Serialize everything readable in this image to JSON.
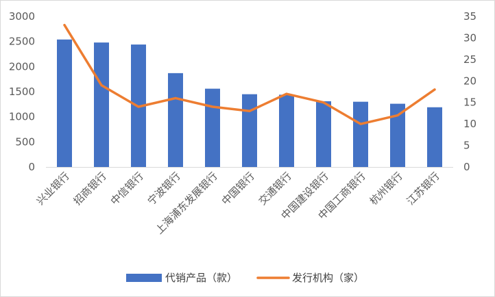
{
  "chart_data": {
    "type": "bar",
    "categories": [
      "兴业银行",
      "招商银行",
      "中信银行",
      "宁波银行",
      "上海浦东发展银行",
      "中国银行",
      "交通银行",
      "中国建设银行",
      "中国工商银行",
      "杭州银行",
      "江苏银行"
    ],
    "series": [
      {
        "name": "代销产品（款）",
        "type": "bar",
        "axis": "left",
        "color": "#4472C4",
        "values": [
          2540,
          2480,
          2440,
          1870,
          1560,
          1450,
          1440,
          1310,
          1300,
          1260,
          1190
        ]
      },
      {
        "name": "发行机构（家）",
        "type": "line",
        "axis": "right",
        "color": "#ED7D31",
        "values": [
          33,
          19,
          14,
          16,
          14,
          13,
          17,
          15,
          10,
          12,
          18
        ]
      }
    ],
    "y_left": {
      "min": 0,
      "max": 3000,
      "step": 500,
      "ticks": [
        "0",
        "500",
        "1000",
        "1500",
        "2000",
        "2500",
        "3000"
      ]
    },
    "y_right": {
      "min": 0,
      "max": 35,
      "step": 5,
      "ticks": [
        "0",
        "5",
        "10",
        "15",
        "20",
        "25",
        "30",
        "35"
      ]
    },
    "grid": false,
    "legend_position": "bottom",
    "title": "",
    "xlabel": "",
    "ylabel": ""
  }
}
